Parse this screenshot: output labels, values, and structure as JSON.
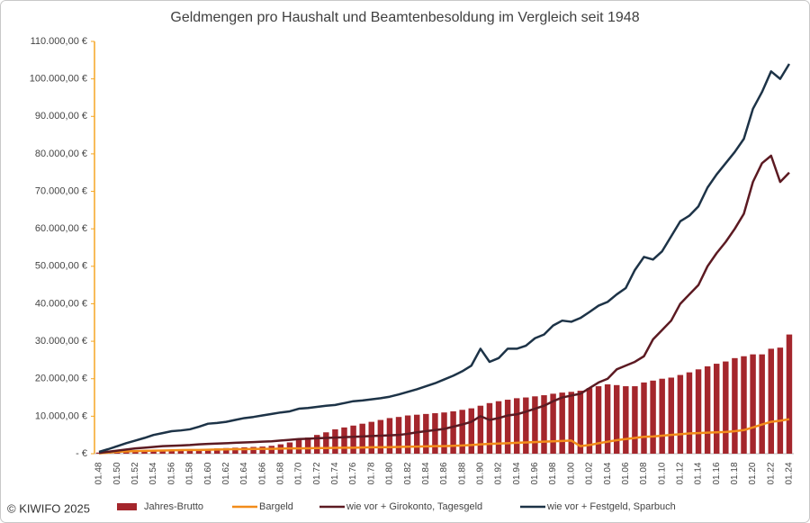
{
  "chart_data": {
    "type": "bar_line",
    "title": "Geldmengen pro Haushalt und Beamtenbesoldung  im Vergleich seit 1948",
    "copyright": "© KIWIFO 2025",
    "categories": [
      "01.48",
      null,
      "01.50",
      null,
      "01.52",
      null,
      "01.54",
      null,
      "01.56",
      null,
      "01.58",
      null,
      "01.60",
      null,
      "01.62",
      null,
      "01.64",
      null,
      "01.66",
      null,
      "01.68",
      null,
      "01.70",
      null,
      "01.72",
      null,
      "01.74",
      null,
      "01.76",
      null,
      "01.78",
      null,
      "01.80",
      null,
      "01.82",
      null,
      "01.84",
      null,
      "01.86",
      null,
      "01.88",
      null,
      "01.90",
      null,
      "01.92",
      null,
      "01.94",
      null,
      "01.96",
      null,
      "01.98",
      null,
      "01.00",
      null,
      "01.02",
      null,
      "01.04",
      null,
      "01.06",
      null,
      "01.08",
      null,
      "01.10",
      null,
      "01.12",
      null,
      "01.14",
      null,
      "01.16",
      null,
      "01.18",
      null,
      "01.20",
      null,
      "01.22",
      null,
      "01.24"
    ],
    "series": [
      {
        "name": "Jahres-Brutto",
        "kind": "bar",
        "color": "#a4262c",
        "values": [
          300,
          450,
          600,
          700,
          800,
          850,
          900,
          950,
          1000,
          1050,
          1100,
          1200,
          1300,
          1400,
          1500,
          1600,
          1700,
          1800,
          1900,
          2100,
          2500,
          3000,
          3800,
          4300,
          5000,
          5700,
          6500,
          7000,
          7500,
          8000,
          8500,
          9000,
          9500,
          9800,
          10200,
          10400,
          10600,
          10800,
          11000,
          11300,
          11700,
          12100,
          12800,
          13500,
          14000,
          14400,
          14800,
          15000,
          15300,
          15600,
          16000,
          16300,
          16500,
          16800,
          17500,
          18000,
          18500,
          18300,
          18000,
          18000,
          19000,
          19500,
          20000,
          20300,
          21000,
          21700,
          22500,
          23300,
          24000,
          24600,
          25500,
          26000,
          26500,
          26500,
          28000,
          28300,
          31800
        ]
      },
      {
        "name": "Bargeld",
        "kind": "line",
        "color": "#f28c1a",
        "values": [
          100,
          300,
          500,
          600,
          700,
          750,
          800,
          850,
          900,
          950,
          1000,
          1000,
          1050,
          1100,
          1150,
          1200,
          1200,
          1250,
          1300,
          1300,
          1350,
          1400,
          1400,
          1450,
          1500,
          1500,
          1550,
          1600,
          1600,
          1650,
          1700,
          1700,
          1750,
          1800,
          1850,
          1900,
          1950,
          2000,
          2000,
          2100,
          2200,
          2300,
          2500,
          2600,
          2700,
          2800,
          2900,
          3000,
          3100,
          3200,
          3300,
          3400,
          3500,
          2000,
          2300,
          2800,
          3200,
          3600,
          3900,
          4200,
          4500,
          4600,
          4800,
          5000,
          5200,
          5400,
          5500,
          5600,
          5700,
          5800,
          6000,
          6300,
          7000,
          7800,
          8500,
          8800,
          9200
        ]
      },
      {
        "name": "wie vor + Girokonto, Tagesgeld",
        "kind": "line",
        "color": "#5c1a22",
        "values": [
          200,
          500,
          800,
          1100,
          1400,
          1600,
          1800,
          2000,
          2100,
          2200,
          2300,
          2500,
          2600,
          2700,
          2800,
          2900,
          3000,
          3100,
          3200,
          3300,
          3500,
          3700,
          3900,
          4000,
          4100,
          4200,
          4300,
          4400,
          4500,
          4600,
          4700,
          4800,
          4900,
          5000,
          5300,
          5700,
          6000,
          6300,
          6600,
          7200,
          7800,
          8500,
          10000,
          9000,
          9500,
          10200,
          10500,
          11200,
          12000,
          12800,
          14000,
          15000,
          15500,
          16000,
          17500,
          19000,
          20000,
          22500,
          23500,
          24500,
          26000,
          30500,
          33000,
          35500,
          40000,
          42500,
          45000,
          50000,
          53500,
          56500,
          60000,
          64000,
          72500,
          77500,
          79500,
          72500,
          75000
        ]
      },
      {
        "name": "wie vor + Festgeld, Sparbuch",
        "kind": "line",
        "color": "#1d3347",
        "values": [
          500,
          1200,
          2000,
          2800,
          3500,
          4200,
          5000,
          5500,
          6000,
          6200,
          6500,
          7200,
          8000,
          8200,
          8500,
          9000,
          9500,
          9800,
          10200,
          10600,
          11000,
          11300,
          12000,
          12200,
          12500,
          12800,
          13000,
          13500,
          14000,
          14200,
          14500,
          14800,
          15200,
          15800,
          16500,
          17200,
          18000,
          18800,
          19800,
          20800,
          22000,
          23500,
          28000,
          24500,
          25500,
          28000,
          28000,
          28800,
          30800,
          31800,
          34200,
          35500,
          35200,
          36200,
          37800,
          39500,
          40500,
          42500,
          44200,
          49000,
          52500,
          51800,
          54000,
          58000,
          62000,
          63500,
          66000,
          71000,
          74500,
          77500,
          80500,
          84000,
          92000,
          96500,
          102000,
          100000,
          104000
        ]
      }
    ],
    "ylim": [
      0,
      110000
    ],
    "yticks": [
      {
        "value": 0,
        "label": "-   €"
      },
      {
        "value": 10000,
        "label": "10.000,00 €"
      },
      {
        "value": 20000,
        "label": "20.000,00 €"
      },
      {
        "value": 30000,
        "label": "30.000,00 €"
      },
      {
        "value": 40000,
        "label": "40.000,00 €"
      },
      {
        "value": 50000,
        "label": "50.000,00 €"
      },
      {
        "value": 60000,
        "label": "60.000,00 €"
      },
      {
        "value": 70000,
        "label": "70.000,00 €"
      },
      {
        "value": 80000,
        "label": "80.000,00 €"
      },
      {
        "value": 90000,
        "label": "90.000,00 €"
      },
      {
        "value": 100000,
        "label": "100.000,00 €"
      },
      {
        "value": 110000,
        "label": "110.000,00 €"
      }
    ],
    "axis_color": "#f5a623",
    "legend": "bottom"
  }
}
